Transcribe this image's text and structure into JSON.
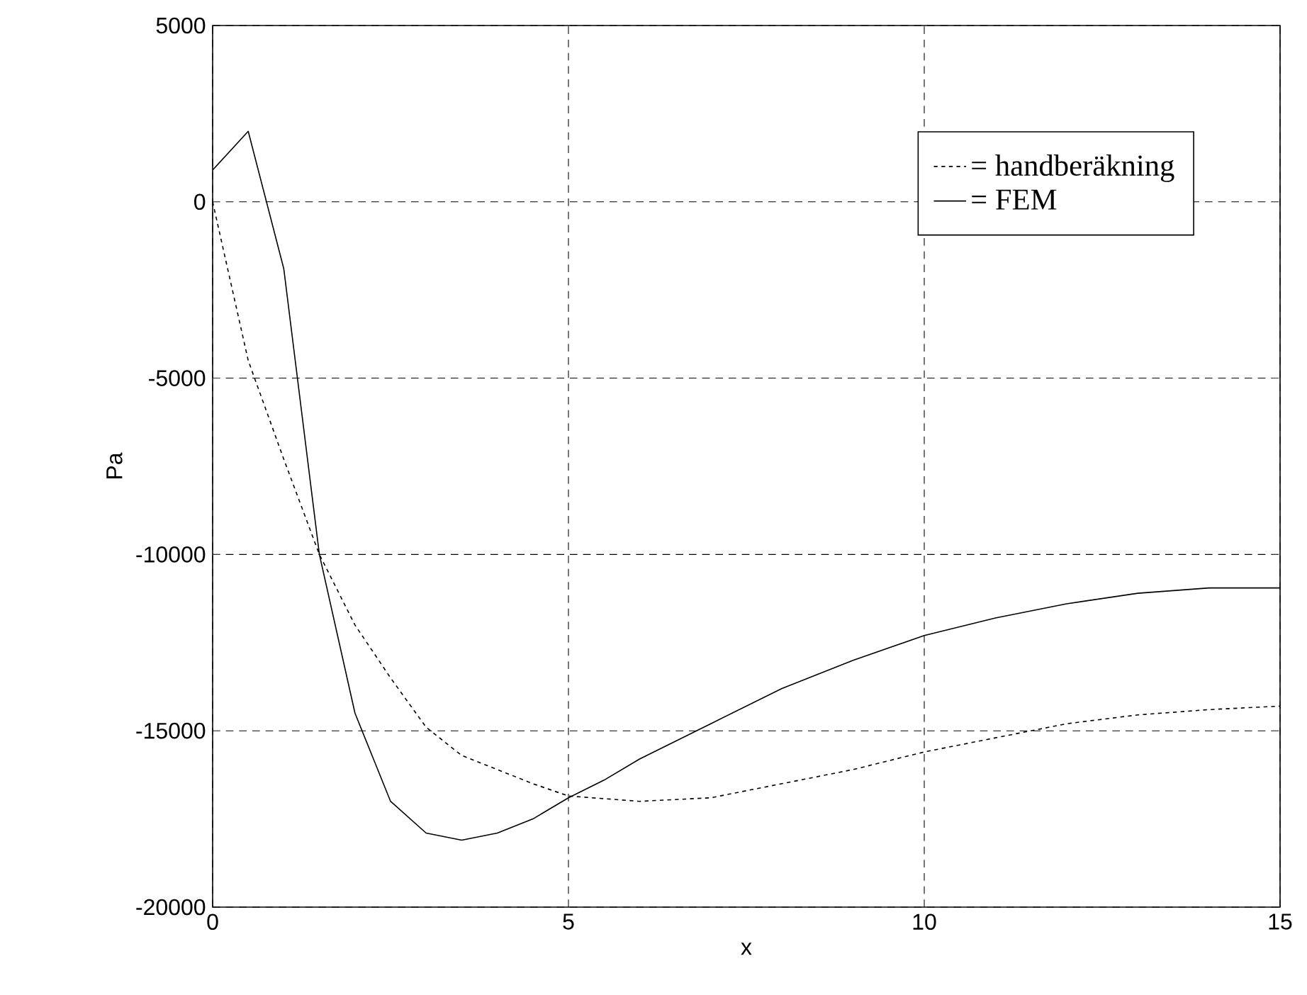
{
  "chart_data": {
    "type": "line",
    "xlabel": "x",
    "ylabel": "Pa",
    "xlim": [
      0,
      15
    ],
    "ylim": [
      -20000,
      5000
    ],
    "xticks": [
      0,
      5,
      10,
      15
    ],
    "yticks": [
      -20000,
      -15000,
      -10000,
      -5000,
      0,
      5000
    ],
    "grid": true,
    "legend": "top right",
    "series": [
      {
        "name": "= handberäkning",
        "color": "#000000",
        "line_style": "dotted",
        "x": [
          0,
          0.5,
          1,
          1.5,
          2,
          2.5,
          3,
          3.5,
          4,
          4.5,
          5,
          6,
          7,
          8,
          9,
          10,
          11,
          12,
          13,
          14,
          15
        ],
        "values": [
          0,
          -4500,
          -7300,
          -10000,
          -12000,
          -13500,
          -14900,
          -15700,
          -16100,
          -16500,
          -16850,
          -17000,
          -16900,
          -16500,
          -16100,
          -15600,
          -15200,
          -14800,
          -14550,
          -14400,
          -14300
        ]
      },
      {
        "name": "= FEM",
        "color": "#000000",
        "line_style": "solid",
        "x": [
          0,
          0.5,
          1,
          1.5,
          2,
          2.5,
          3,
          3.5,
          4,
          4.5,
          5,
          5.5,
          6,
          7,
          8,
          9,
          10,
          11,
          12,
          13,
          14,
          15
        ],
        "values": [
          900,
          2000,
          -1900,
          -10000,
          -14500,
          -17000,
          -17900,
          -18100,
          -17900,
          -17500,
          -16900,
          -16400,
          -15800,
          -14800,
          -13800,
          -13000,
          -12300,
          -11800,
          -11400,
          -11100,
          -10950,
          -10950
        ]
      }
    ]
  }
}
